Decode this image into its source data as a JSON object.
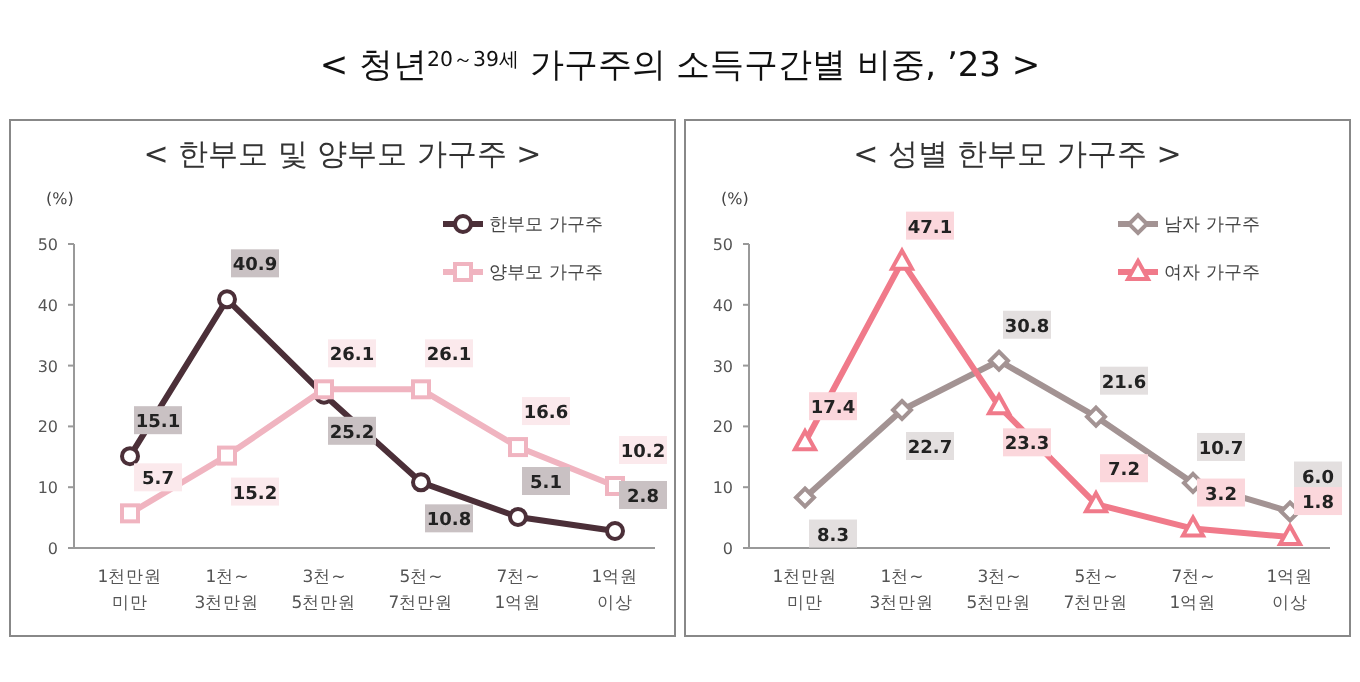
{
  "chart_data": [
    {
      "type": "line",
      "title": "< 청년$^{20～39세}$ 가구주의 소득구간별 비중, ’23 >",
      "subtitle": "< 한부모 및 양부모 가구주 >",
      "ylabel": "(%)",
      "categories": [
        "1천만원\n미만",
        "1천~\n3천만원",
        "3천~\n5천만원",
        "5천~\n7천만원",
        "7천~\n1억원",
        "1억원\n이상"
      ],
      "ylim": [
        0,
        50
      ],
      "yticks": [
        0,
        10,
        20,
        30,
        40,
        50
      ],
      "grid": false,
      "legend": "top right",
      "line_style": "solid",
      "series": [
        {
          "name": "한부모 가구주",
          "color": "#4b2f38",
          "marker": "circle",
          "values": [
            15.1,
            40.9,
            25.2,
            10.8,
            5.1,
            2.8
          ],
          "value_labels": [
            "15.1",
            "40.9",
            "25.2",
            "10.8",
            "5.1",
            "2.8"
          ]
        },
        {
          "name": "양부모 가구주",
          "color": "#f0b4c0",
          "marker": "square",
          "values": [
            5.7,
            15.2,
            26.1,
            26.1,
            16.6,
            10.2
          ],
          "value_labels": [
            "5.7",
            "15.2",
            "26.1",
            "26.1",
            "16.6",
            "10.2"
          ]
        }
      ]
    },
    {
      "type": "line",
      "subtitle": "< 성별 한부모 가구주 >",
      "ylabel": "(%)",
      "categories": [
        "1천만원\n미만",
        "1천~\n3천만원",
        "3천~\n5천만원",
        "5천~\n7천만원",
        "7천~\n1억원",
        "1억원\n이상"
      ],
      "ylim": [
        0,
        50
      ],
      "yticks": [
        0,
        10,
        20,
        30,
        40,
        50
      ],
      "grid": false,
      "legend": "top right",
      "line_style": "solid",
      "series": [
        {
          "name": "남자 가구주",
          "color": "#a39393",
          "marker": "diamond",
          "values": [
            8.3,
            22.7,
            30.8,
            21.6,
            10.7,
            6.0
          ],
          "value_labels": [
            "8.3",
            "22.7",
            "30.8",
            "21.6",
            "10.7",
            "6.0"
          ]
        },
        {
          "name": "여자 가구주",
          "color": "#f07a8a",
          "marker": "triangle",
          "values": [
            17.4,
            47.1,
            23.3,
            7.2,
            3.2,
            1.8
          ],
          "value_labels": [
            "17.4",
            "47.1",
            "23.3",
            "7.2",
            "3.2",
            "1.8"
          ]
        }
      ]
    }
  ]
}
